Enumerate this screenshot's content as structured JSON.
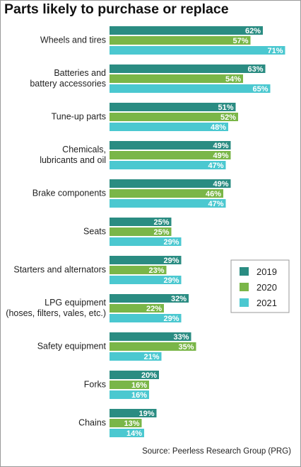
{
  "chart_data": {
    "type": "bar",
    "orientation": "horizontal",
    "title": "Parts likely to purchase or replace",
    "source": "Source: Peerless Research Group (PRG)",
    "categories": [
      "Wheels and tires",
      "Batteries and\nbattery accessories",
      "Tune-up parts",
      "Chemicals,\nlubricants and oil",
      "Brake components",
      "Seats",
      "Starters and alternators",
      "LPG equipment\n(hoses, filters, vales, etc.)",
      "Safety equipment",
      "Forks",
      "Chains"
    ],
    "series": [
      {
        "name": "2019",
        "color": "#2a8c82",
        "values": [
          62,
          63,
          51,
          49,
          49,
          25,
          29,
          32,
          33,
          20,
          19
        ],
        "value_labels": [
          "62%",
          "63%",
          "51%",
          "49%",
          "49%",
          "25%",
          "29%",
          "32%",
          "33%",
          "20%",
          "19%"
        ]
      },
      {
        "name": "2020",
        "color": "#7ab648",
        "values": [
          57,
          54,
          52,
          49,
          46,
          25,
          23,
          22,
          35,
          16,
          13
        ],
        "value_labels": [
          "57%",
          "54%",
          "52%",
          "49%",
          "46%",
          "25%",
          "23%",
          "22%",
          "35%",
          "16%",
          "13%"
        ]
      },
      {
        "name": "2021",
        "color": "#4bc8d0",
        "values": [
          71,
          65,
          48,
          47,
          47,
          29,
          29,
          29,
          21,
          16,
          14
        ],
        "value_labels": [
          "71%",
          "65%",
          "48%",
          "47%",
          "47%",
          "29%",
          "29%",
          "29%",
          "21%",
          "16%",
          "14%"
        ]
      }
    ],
    "legend": "right"
  }
}
